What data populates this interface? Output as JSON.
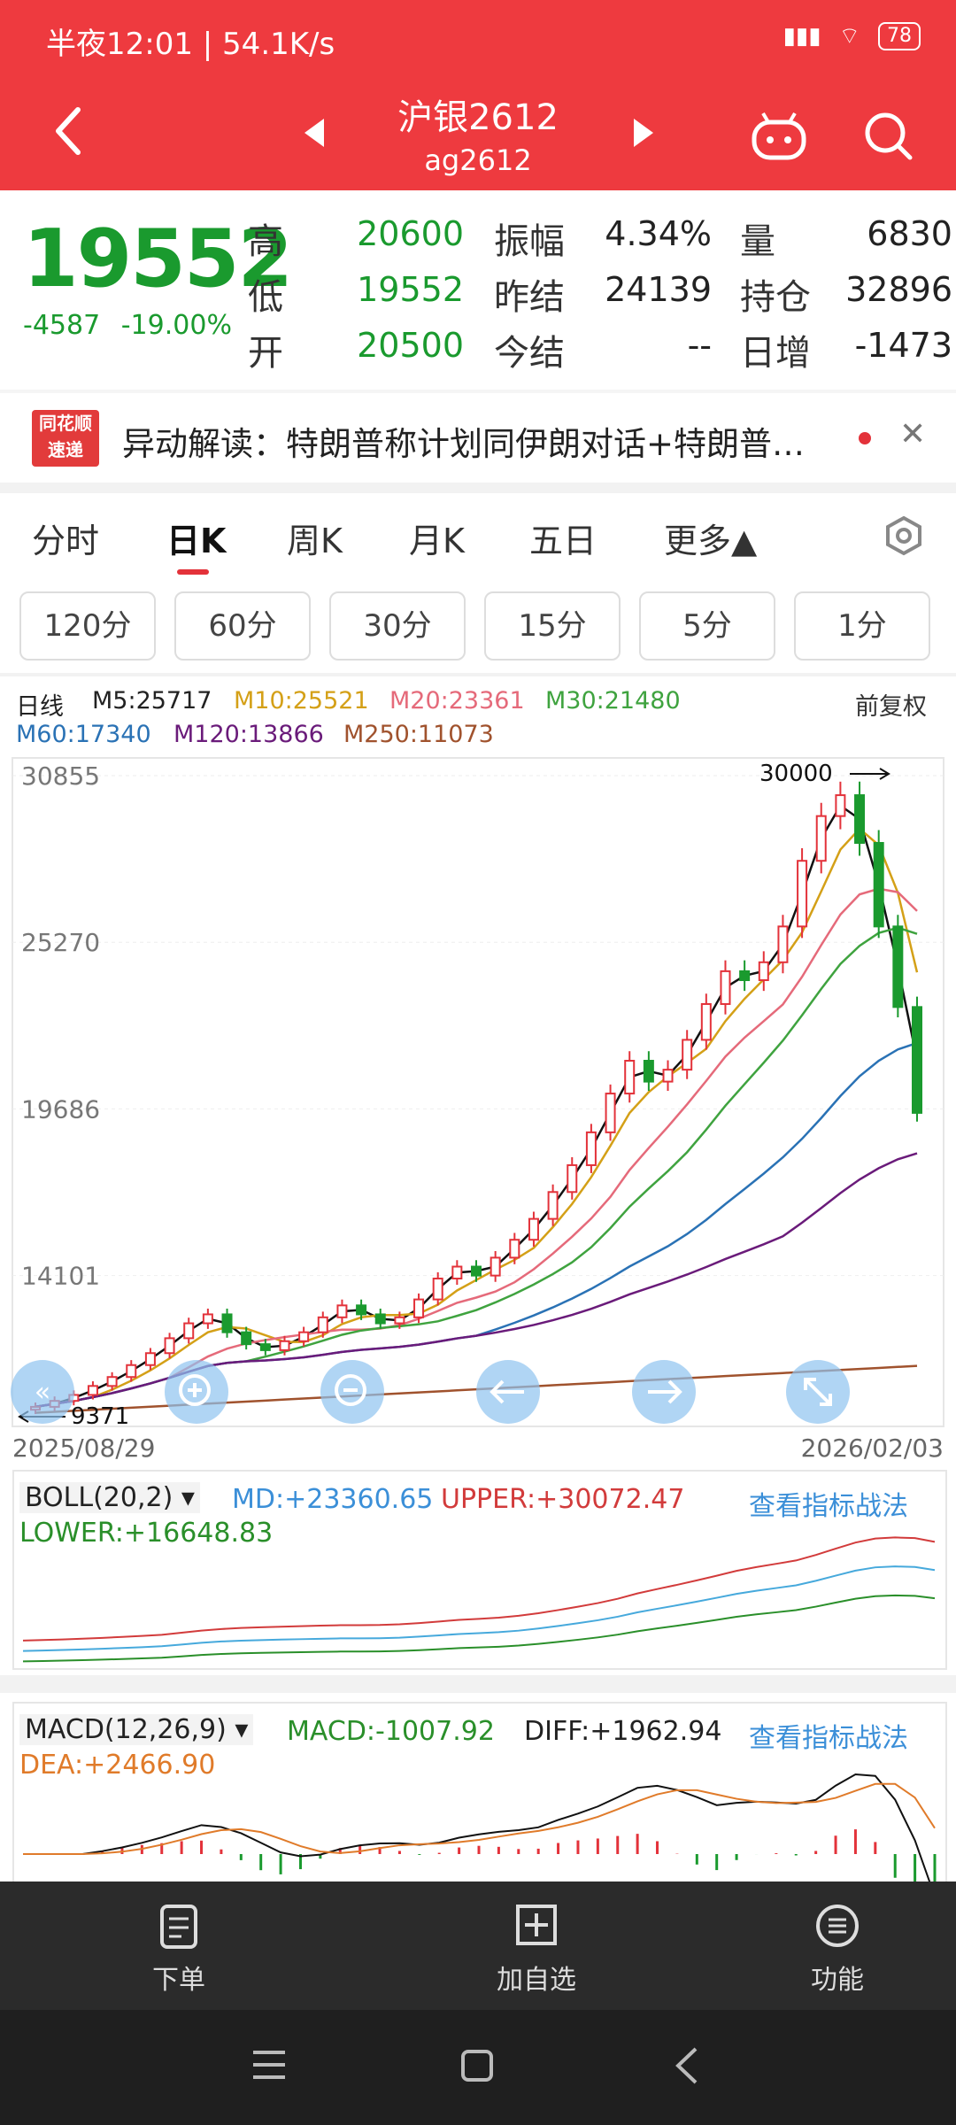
{
  "status": {
    "time": "半夜12:01 | 54.1K/s",
    "battery": "78"
  },
  "header": {
    "title": "沪银2612",
    "subtitle": "ag2612"
  },
  "quote": {
    "price": "19552",
    "change": "-4587",
    "change_pct": "-19.00%",
    "high_label": "高",
    "high": "20600",
    "low_label": "低",
    "low": "19552",
    "open_label": "开",
    "open": "20500",
    "amplitude_label": "振幅",
    "amplitude": "4.34%",
    "prev_settle_label": "昨结",
    "prev_settle": "24139",
    "settle_label": "今结",
    "settle": "--",
    "volume_label": "量",
    "volume": "6830",
    "oi_label": "持仓",
    "oi": "32896",
    "oi_change_label": "日增",
    "oi_change": "-1473"
  },
  "news": {
    "logo_line1": "同花顺",
    "logo_line2": "速递",
    "text": "异动解读：特朗普称计划同伊朗对话+特朗普…"
  },
  "tabs": [
    "分时",
    "日K",
    "周K",
    "月K",
    "五日",
    "更多▲"
  ],
  "intervals": [
    "120分",
    "60分",
    "30分",
    "15分",
    "5分",
    "1分"
  ],
  "legend": {
    "name": "日线",
    "m5": "M5:25717",
    "m10": "M10:25521",
    "m20": "M20:23361",
    "m30": "M30:21480",
    "m60": "M60:17340",
    "m120": "M120:13866",
    "m250": "M250:11073",
    "adjust": "前复权"
  },
  "chart_data": {
    "type": "candlestick",
    "y_ticks": [
      "30855",
      "25270",
      "19686",
      "14101"
    ],
    "ylim": [
      9371,
      30855
    ],
    "x_start": "2025/08/29",
    "x_end": "2026/02/03",
    "annotation_high": "30000",
    "annotation_low": "9371",
    "close_trend": [
      9700,
      9900,
      10100,
      10400,
      10700,
      11100,
      11500,
      12000,
      12500,
      12800,
      12200,
      11800,
      11600,
      11900,
      12200,
      12700,
      13100,
      12800,
      12500,
      12700,
      13300,
      14000,
      14400,
      14100,
      14700,
      15300,
      16000,
      16900,
      17800,
      18900,
      20200,
      21300,
      20600,
      21000,
      22000,
      23200,
      24300,
      24000,
      24600,
      25800,
      28000,
      29500,
      30200,
      28600,
      25800,
      23100,
      19552
    ]
  },
  "boll": {
    "label": "BOLL(20,2)",
    "md": "MD:+23360.65",
    "upper": "UPPER:+30072.47",
    "lower": "LOWER:+16648.83",
    "link": "查看指标战法"
  },
  "macd": {
    "label": "MACD(12,26,9)",
    "macd": "MACD:-1007.92",
    "diff": "DIFF:+1962.94",
    "dea": "DEA:+2466.90",
    "link": "查看指标战法"
  },
  "bottom_bar": {
    "order": "下单",
    "watch": "加自选",
    "func": "功能"
  },
  "colors": {
    "header": "#ee3a3f",
    "down": "#1a9a2e",
    "up": "#e3323a",
    "link": "#3b8fd8"
  }
}
